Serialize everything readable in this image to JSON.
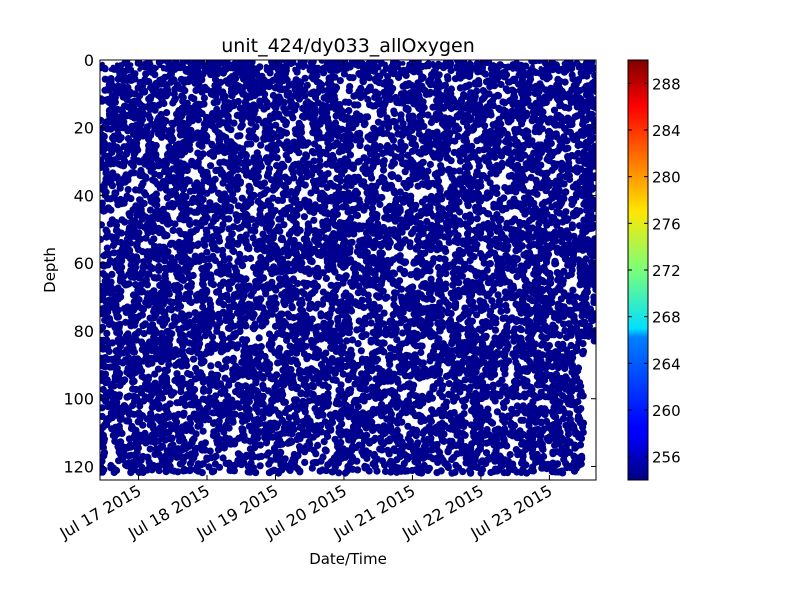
{
  "chart_data": {
    "type": "scatter",
    "title": "unit_424/dy033_allOxygen",
    "xlabel": "Date/Time",
    "ylabel": "Depth",
    "x_range": [
      "2015-07-16T10:30",
      "2015-07-23T16:20"
    ],
    "y_range": [
      124,
      0
    ],
    "y_inverted": true,
    "x_ticks": [
      "Jul 17 2015",
      "Jul 18 2015",
      "Jul 19 2015",
      "Jul 20 2015",
      "Jul 21 2015",
      "Jul 22 2015",
      "Jul 23 2015"
    ],
    "x_tick_dates": [
      "2015-07-17",
      "2015-07-18",
      "2015-07-19",
      "2015-07-20",
      "2015-07-21",
      "2015-07-22",
      "2015-07-23"
    ],
    "y_ticks": [
      "0",
      "20",
      "40",
      "60",
      "80",
      "100",
      "120"
    ],
    "y_tick_values": [
      0,
      20,
      40,
      60,
      80,
      100,
      120
    ],
    "point_color": "#00008f",
    "point_value_approx": 254,
    "colorbar": {
      "colormap": "jet",
      "range": [
        254,
        290
      ],
      "ticks": [
        "256",
        "260",
        "264",
        "268",
        "272",
        "276",
        "280",
        "284",
        "288"
      ],
      "tick_values": [
        256,
        260,
        264,
        268,
        272,
        276,
        280,
        284,
        288
      ]
    },
    "series": [
      {
        "description_points": "dense scatter of profile samples covering depths 0 to ~122 across the time range; after ~Jul 23 12:00 samples reach only ~83",
        "max_depth_by_day": [
          {
            "x": "2015-07-16",
            "y": 122
          },
          {
            "x": "2015-07-17",
            "y": 122
          },
          {
            "x": "2015-07-18",
            "y": 122
          },
          {
            "x": "2015-07-19",
            "y": 122
          },
          {
            "x": "2015-07-20",
            "y": 122
          },
          {
            "x": "2015-07-21",
            "y": 122
          },
          {
            "x": "2015-07-22",
            "y": 122
          },
          {
            "x": "2015-07-23",
            "y": 122
          },
          {
            "x": "2015-07-23T12:00",
            "y": 83
          }
        ]
      }
    ]
  }
}
